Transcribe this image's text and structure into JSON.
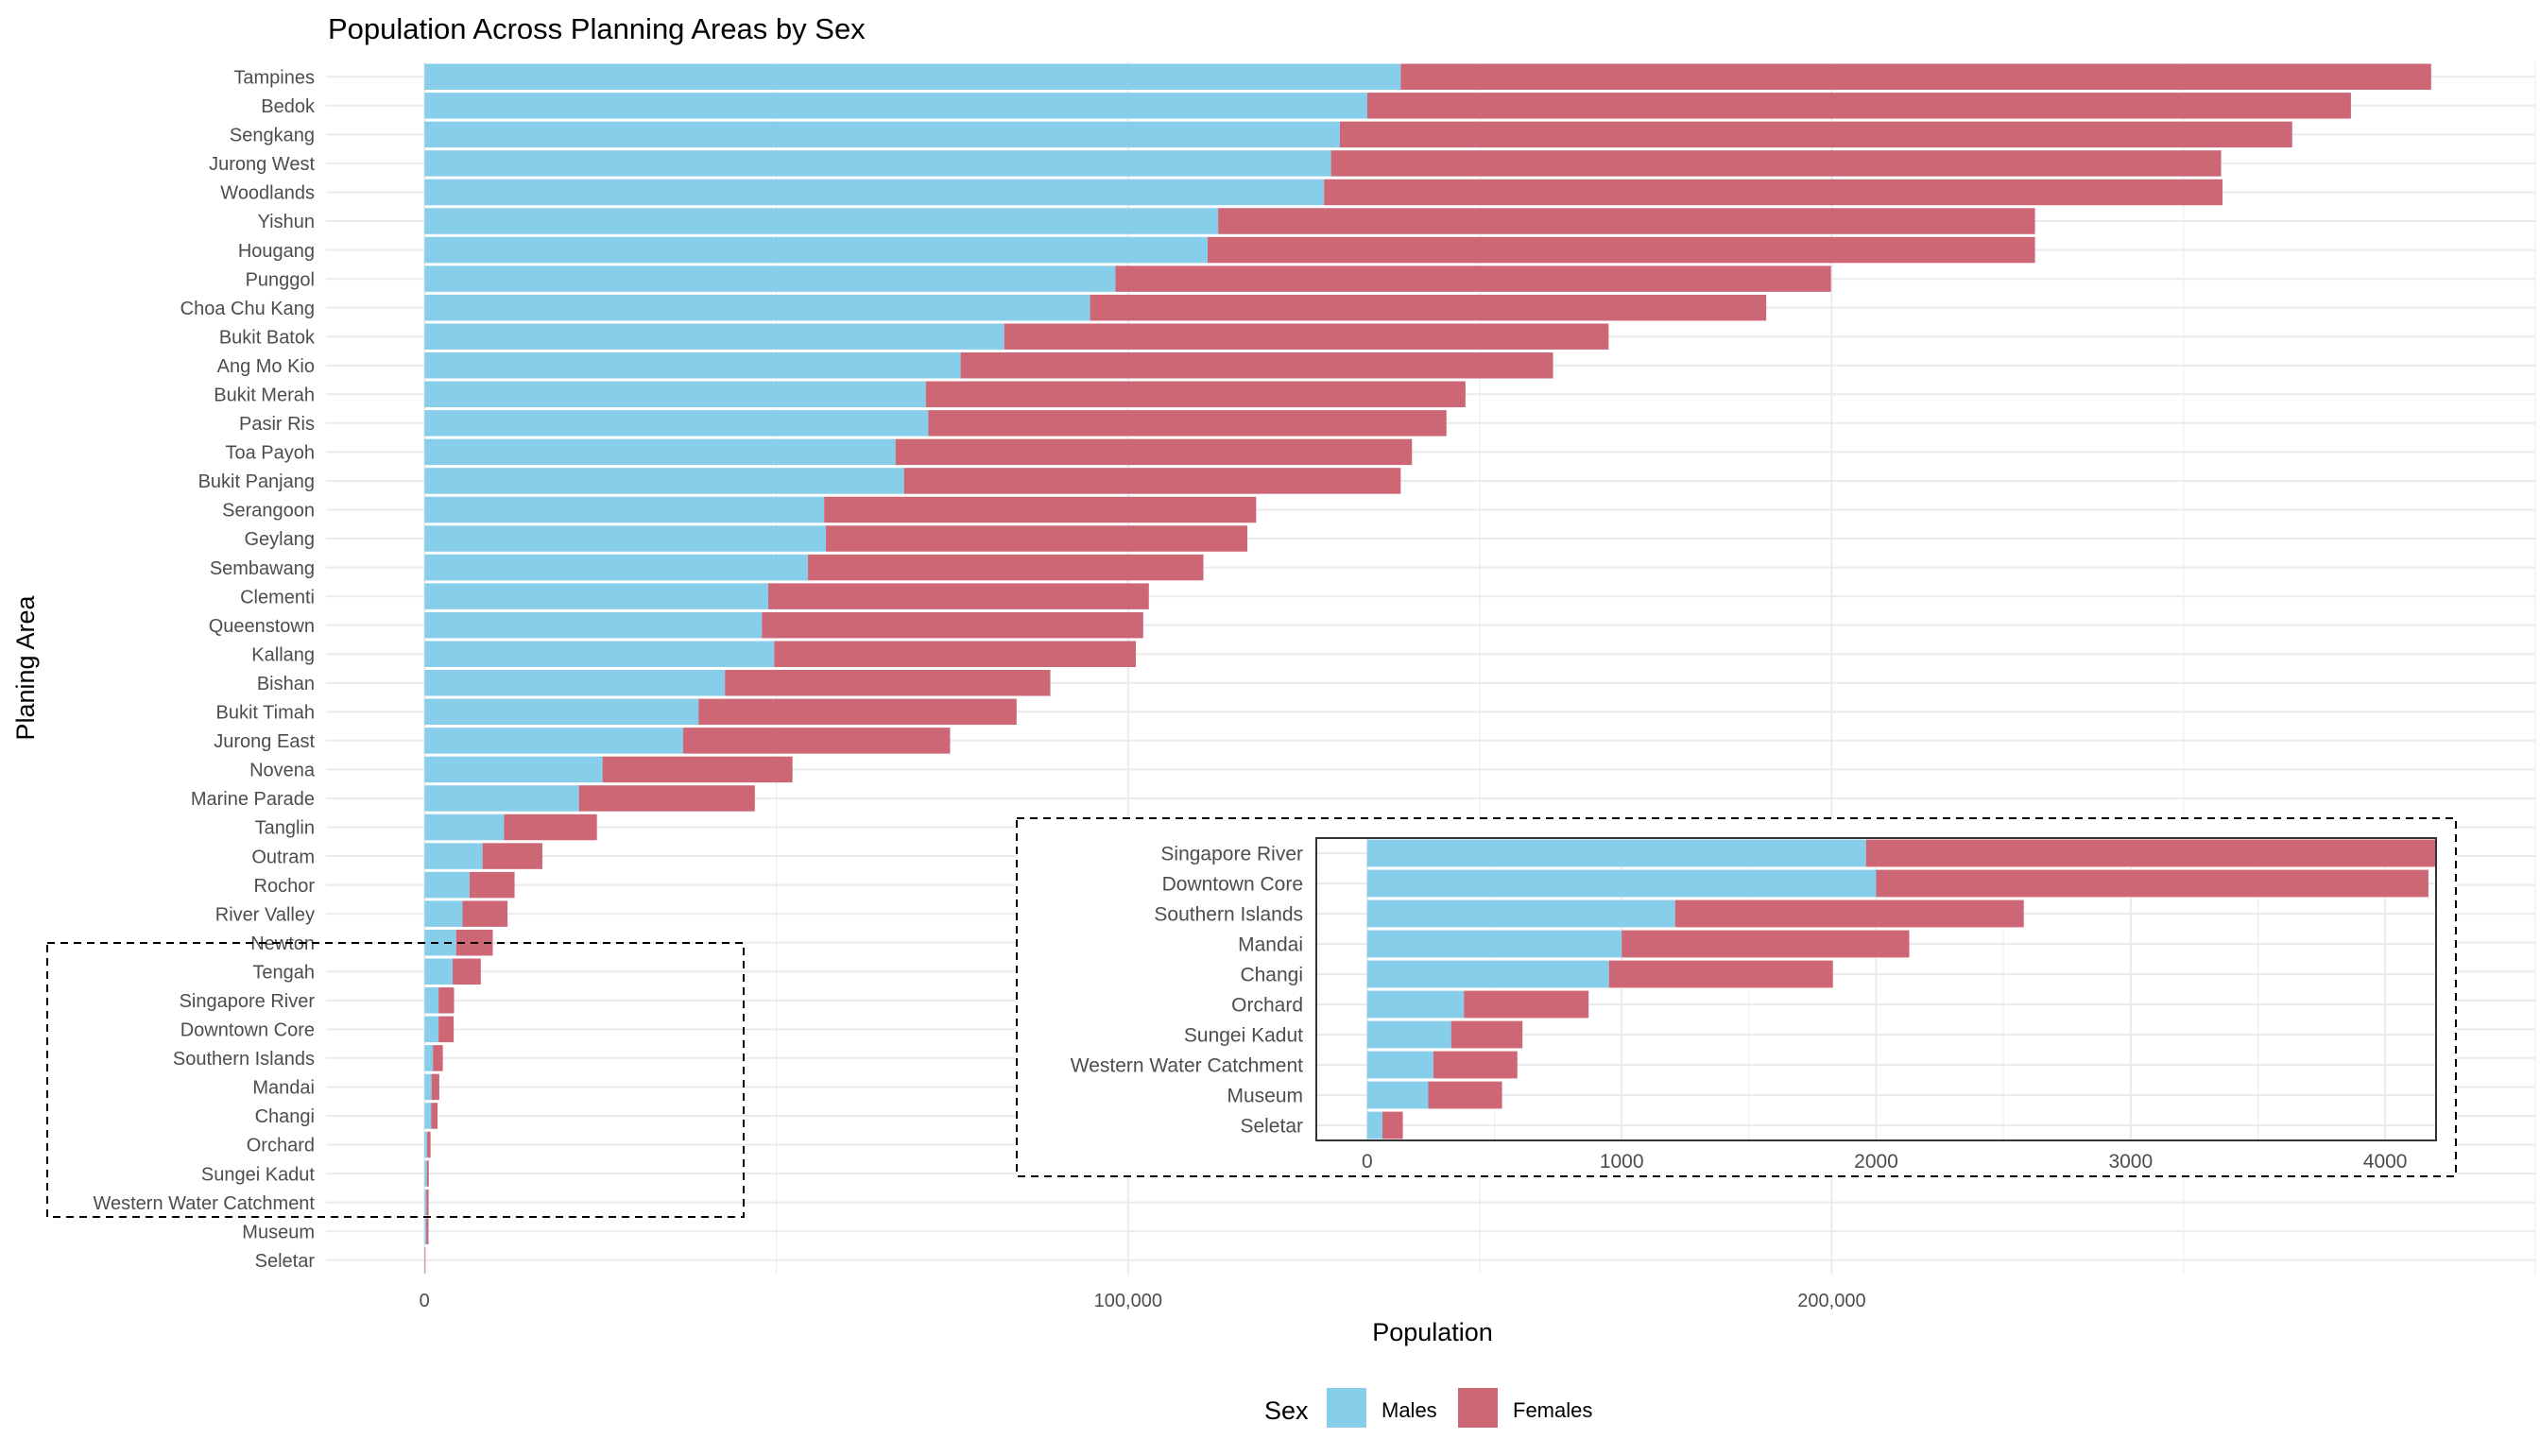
{
  "chart_data": [
    {
      "type": "bar",
      "orientation": "horizontal",
      "stacked": true,
      "title": "Population Across Planning Areas by Sex",
      "xlabel": "Population",
      "ylabel": "Planing Area",
      "xlim": [
        -14000,
        300000
      ],
      "x_ticks": [
        0,
        100000,
        200000
      ],
      "x_tick_labels": [
        "0",
        "100,000",
        "200,000"
      ],
      "grid": true,
      "legend_title": "Sex",
      "legend_position": "bottom",
      "categories": [
        "Tampines",
        "Bedok",
        "Sengkang",
        "Jurong West",
        "Woodlands",
        "Yishun",
        "Hougang",
        "Punggol",
        "Choa Chu Kang",
        "Bukit Batok",
        "Ang Mo Kio",
        "Bukit Merah",
        "Pasir Ris",
        "Toa Payoh",
        "Bukit Panjang",
        "Serangoon",
        "Geylang",
        "Sembawang",
        "Clementi",
        "Queenstown",
        "Kallang",
        "Bishan",
        "Bukit Timah",
        "Jurong East",
        "Novena",
        "Marine Parade",
        "Tanglin",
        "Outram",
        "Rochor",
        "River Valley",
        "Newton",
        "Tengah",
        "Singapore River",
        "Downtown Core",
        "Southern Islands",
        "Mandai",
        "Changi",
        "Orchard",
        "Sungei Kadut",
        "Western Water Catchment",
        "Museum",
        "Seletar"
      ],
      "series": [
        {
          "name": "Males",
          "color": "#87CEEB",
          "values": [
            138750,
            134000,
            130100,
            128850,
            127850,
            112800,
            111300,
            98200,
            94600,
            82400,
            76200,
            71250,
            71600,
            66950,
            68150,
            56800,
            57050,
            54500,
            48850,
            47950,
            49700,
            42700,
            38950,
            36750,
            25300,
            21950,
            11300,
            8250,
            6400,
            5400,
            4500,
            4000,
            2000,
            2000,
            1200,
            1000,
            950,
            380,
            330,
            260,
            240,
            50
          ]
        },
        {
          "name": "Females",
          "color": "#CD6675",
          "values": [
            146450,
            139800,
            135350,
            126500,
            127700,
            116100,
            117600,
            101700,
            96100,
            85900,
            84200,
            76700,
            73650,
            73400,
            70600,
            61400,
            59900,
            56200,
            54100,
            54200,
            51400,
            46250,
            45200,
            37950,
            27000,
            25000,
            13200,
            8500,
            6400,
            6400,
            5200,
            4000,
            2200,
            2150,
            1400,
            1100,
            900,
            480,
            280,
            330,
            330,
            90
          ]
        }
      ]
    },
    {
      "type": "bar",
      "orientation": "horizontal",
      "stacked": true,
      "inset": true,
      "xlim": [
        -200,
        4200
      ],
      "x_ticks": [
        0,
        1000,
        2000,
        3000,
        4000
      ],
      "x_tick_labels": [
        "0",
        "1000",
        "2000",
        "3000",
        "4000"
      ],
      "categories": [
        "Singapore River",
        "Downtown Core",
        "Southern Islands",
        "Mandai",
        "Changi",
        "Orchard",
        "Sungei Kadut",
        "Western Water Catchment",
        "Museum",
        "Seletar"
      ],
      "series": [
        {
          "name": "Males",
          "color": "#87CEEB",
          "values": [
            1960,
            2000,
            1210,
            1000,
            950,
            380,
            330,
            260,
            240,
            60
          ]
        },
        {
          "name": "Females",
          "color": "#CD6675",
          "values": [
            2240,
            2170,
            1370,
            1130,
            880,
            490,
            280,
            330,
            290,
            80
          ]
        }
      ]
    }
  ],
  "colors": {
    "males": "#87CEEB",
    "females": "#CD6675",
    "grid": "#EBEBEB",
    "text": "#4D4D4D"
  }
}
